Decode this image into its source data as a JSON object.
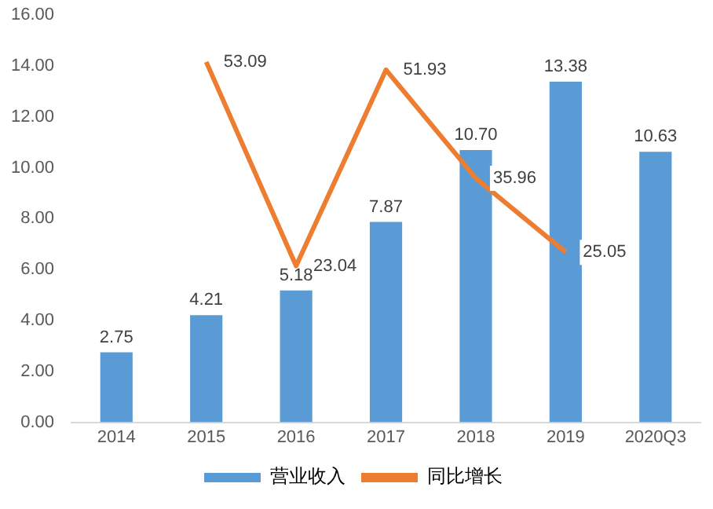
{
  "chart_data": {
    "type": "bar",
    "categories": [
      "2014",
      "2015",
      "2016",
      "2017",
      "2018",
      "2019",
      "2020Q3"
    ],
    "series": [
      {
        "name": "营业收入",
        "color": "#5b9bd5",
        "values": [
          2.75,
          4.21,
          5.18,
          7.87,
          10.7,
          13.38,
          10.63
        ],
        "value_labels": [
          "2.75",
          "4.21",
          "5.18",
          "7.87",
          "10.70",
          "13.38",
          "10.63"
        ]
      },
      {
        "name": "同比增长",
        "type": "line",
        "axis": "y2",
        "color": "#ed7d31",
        "values": [
          null,
          53.09,
          23.04,
          51.93,
          35.96,
          25.05,
          null
        ],
        "value_labels": [
          null,
          "53.09",
          "23.04",
          "51.93",
          "35.96",
          "25.05",
          null
        ]
      }
    ],
    "ylim": [
      0,
      16
    ],
    "yticks": [
      {
        "value": 0,
        "label": "0.00"
      },
      {
        "value": 2,
        "label": "2.00"
      },
      {
        "value": 4,
        "label": "4.00"
      },
      {
        "value": 6,
        "label": "6.00"
      },
      {
        "value": 8,
        "label": "8.00"
      },
      {
        "value": 10,
        "label": "10.00"
      },
      {
        "value": 12,
        "label": "12.00"
      },
      {
        "value": 14,
        "label": "14.00"
      },
      {
        "value": 16,
        "label": "16.00"
      }
    ],
    "grid": false,
    "legend": "bottom",
    "marker": "none",
    "line_style": "solid"
  }
}
